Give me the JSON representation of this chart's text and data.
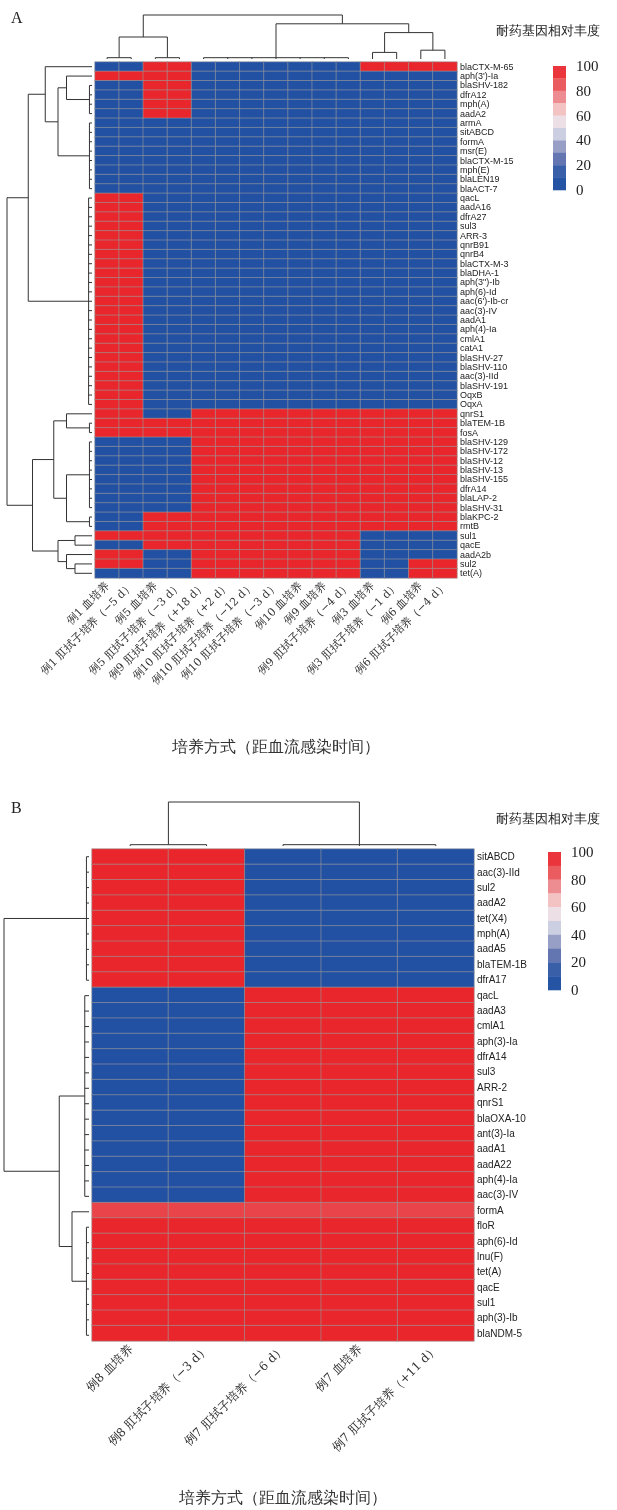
{
  "chart_data": [
    {
      "type": "heatmap",
      "title": "A",
      "xlabel": "培养方式（距血流感染时间）",
      "clabel": "耐药基因相对丰度",
      "categories": [
        "例1 血培养",
        "例1 肛拭子培养（−5 d）",
        "例5 血培养",
        "例5 肛拭子培养（−3 d）",
        "例9 肛拭子培养（+18 d）",
        "例10 肛拭子培养（+2 d）",
        "例10 肛拭子培养（−12 d）",
        "例10 肛拭子培养（−3 d）",
        "例10 血培养",
        "例9 血培养",
        "例9 肛拭子培养（−4 d）",
        "例3 血培养",
        "例3 肛拭子培养（−1 d）",
        "例6 血培养",
        "例6 肛拭子培养（−4 d）"
      ],
      "y_categories": [
        "blaCTX-M-65",
        "aph(3')-Ia",
        "blaSHV-182",
        "dfrA12",
        "mph(A)",
        "aadA2",
        "armA",
        "sitABCD",
        "formA",
        "msr(E)",
        "blaCTX-M-15",
        "mph(E)",
        "blaLEN19",
        "blaACT-7",
        "qacL",
        "aadA16",
        "dfrA27",
        "sul3",
        "ARR-3",
        "qnrB91",
        "qnrB4",
        "blaCTX-M-3",
        "blaDHA-1",
        "aph(3\")-Ib",
        "aph(6)-Id",
        "aac(6')-Ib-cr",
        "aac(3)-IV",
        "aadA1",
        "aph(4)-Ia",
        "cmlA1",
        "catA1",
        "blaSHV-27",
        "blaSHV-110",
        "aac(3)-IId",
        "blaSHV-191",
        "OqxB",
        "OqxA",
        "qnrS1",
        "blaTEM-1B",
        "fosA",
        "blaSHV-129",
        "blaSHV-172",
        "blaSHV-12",
        "blaSHV-13",
        "blaSHV-155",
        "dfrA14",
        "blaLAP-2",
        "blaSHV-31",
        "blaKPC-2",
        "rmtB",
        "sul1",
        "qacE",
        "aadA2b",
        "sul2",
        "tet(A)"
      ],
      "cells": [
        [
          0,
          0,
          100,
          100,
          0,
          0,
          0,
          0,
          0,
          0,
          0,
          100,
          100,
          100,
          100
        ],
        [
          100,
          100,
          100,
          100,
          0,
          0,
          0,
          0,
          0,
          0,
          0,
          0,
          0,
          0,
          0
        ],
        [
          0,
          0,
          100,
          100,
          0,
          0,
          0,
          0,
          0,
          0,
          0,
          0,
          0,
          0,
          0
        ],
        [
          0,
          0,
          100,
          100,
          0,
          0,
          0,
          0,
          0,
          0,
          0,
          0,
          0,
          0,
          0
        ],
        [
          0,
          0,
          100,
          100,
          0,
          0,
          0,
          0,
          0,
          0,
          0,
          0,
          0,
          0,
          0
        ],
        [
          0,
          0,
          100,
          100,
          0,
          0,
          0,
          0,
          0,
          0,
          0,
          0,
          0,
          0,
          0
        ],
        [
          0,
          0,
          0,
          0,
          0,
          0,
          0,
          0,
          0,
          0,
          0,
          0,
          0,
          0,
          0
        ],
        [
          0,
          0,
          0,
          0,
          0,
          0,
          0,
          0,
          0,
          0,
          0,
          0,
          0,
          0,
          0
        ],
        [
          0,
          0,
          0,
          0,
          0,
          0,
          0,
          0,
          0,
          0,
          0,
          0,
          0,
          0,
          0
        ],
        [
          0,
          0,
          0,
          0,
          0,
          0,
          0,
          0,
          0,
          0,
          0,
          0,
          0,
          0,
          0
        ],
        [
          0,
          0,
          0,
          0,
          0,
          0,
          0,
          0,
          0,
          0,
          0,
          0,
          0,
          0,
          0
        ],
        [
          0,
          0,
          0,
          0,
          0,
          0,
          0,
          0,
          0,
          0,
          0,
          0,
          0,
          0,
          0
        ],
        [
          0,
          0,
          0,
          0,
          0,
          0,
          0,
          0,
          0,
          0,
          0,
          0,
          0,
          0,
          0
        ],
        [
          0,
          0,
          0,
          0,
          0,
          0,
          0,
          0,
          0,
          0,
          0,
          0,
          0,
          0,
          0
        ],
        [
          100,
          100,
          0,
          0,
          0,
          0,
          0,
          0,
          0,
          0,
          0,
          0,
          0,
          0,
          0
        ],
        [
          100,
          100,
          0,
          0,
          0,
          0,
          0,
          0,
          0,
          0,
          0,
          0,
          0,
          0,
          0
        ],
        [
          100,
          100,
          0,
          0,
          0,
          0,
          0,
          0,
          0,
          0,
          0,
          0,
          0,
          0,
          0
        ],
        [
          100,
          100,
          0,
          0,
          0,
          0,
          0,
          0,
          0,
          0,
          0,
          0,
          0,
          0,
          0
        ],
        [
          100,
          100,
          0,
          0,
          0,
          0,
          0,
          0,
          0,
          0,
          0,
          0,
          0,
          0,
          0
        ],
        [
          100,
          100,
          0,
          0,
          0,
          0,
          0,
          0,
          0,
          0,
          0,
          0,
          0,
          0,
          0
        ],
        [
          100,
          100,
          0,
          0,
          0,
          0,
          0,
          0,
          0,
          0,
          0,
          0,
          0,
          0,
          0
        ],
        [
          100,
          100,
          0,
          0,
          0,
          0,
          0,
          0,
          0,
          0,
          0,
          0,
          0,
          0,
          0
        ],
        [
          100,
          100,
          0,
          0,
          0,
          0,
          0,
          0,
          0,
          0,
          0,
          0,
          0,
          0,
          0
        ],
        [
          100,
          100,
          0,
          0,
          0,
          0,
          0,
          0,
          0,
          0,
          0,
          0,
          0,
          0,
          0
        ],
        [
          100,
          100,
          0,
          0,
          0,
          0,
          0,
          0,
          0,
          0,
          0,
          0,
          0,
          0,
          0
        ],
        [
          100,
          100,
          0,
          0,
          0,
          0,
          0,
          0,
          0,
          0,
          0,
          0,
          0,
          0,
          0
        ],
        [
          100,
          100,
          0,
          0,
          0,
          0,
          0,
          0,
          0,
          0,
          0,
          0,
          0,
          0,
          0
        ],
        [
          100,
          100,
          0,
          0,
          0,
          0,
          0,
          0,
          0,
          0,
          0,
          0,
          0,
          0,
          0
        ],
        [
          100,
          100,
          0,
          0,
          0,
          0,
          0,
          0,
          0,
          0,
          0,
          0,
          0,
          0,
          0
        ],
        [
          100,
          100,
          0,
          0,
          0,
          0,
          0,
          0,
          0,
          0,
          0,
          0,
          0,
          0,
          0
        ],
        [
          100,
          100,
          0,
          0,
          0,
          0,
          0,
          0,
          0,
          0,
          0,
          0,
          0,
          0,
          0
        ],
        [
          100,
          100,
          0,
          0,
          0,
          0,
          0,
          0,
          0,
          0,
          0,
          0,
          0,
          0,
          0
        ],
        [
          100,
          100,
          0,
          0,
          0,
          0,
          0,
          0,
          0,
          0,
          0,
          0,
          0,
          0,
          0
        ],
        [
          100,
          100,
          0,
          0,
          0,
          0,
          0,
          0,
          0,
          0,
          0,
          0,
          0,
          0,
          0
        ],
        [
          100,
          100,
          0,
          0,
          0,
          0,
          0,
          0,
          0,
          0,
          0,
          0,
          0,
          0,
          0
        ],
        [
          100,
          100,
          0,
          0,
          0,
          0,
          0,
          0,
          0,
          0,
          0,
          0,
          0,
          0,
          0
        ],
        [
          100,
          100,
          0,
          0,
          0,
          0,
          0,
          0,
          0,
          0,
          0,
          0,
          0,
          0,
          0
        ],
        [
          100,
          100,
          0,
          0,
          100,
          100,
          100,
          100,
          100,
          100,
          100,
          100,
          100,
          100,
          100
        ],
        [
          100,
          100,
          100,
          100,
          100,
          100,
          100,
          100,
          100,
          100,
          100,
          100,
          100,
          100,
          100
        ],
        [
          100,
          100,
          100,
          100,
          100,
          100,
          100,
          100,
          100,
          100,
          100,
          100,
          100,
          100,
          100
        ],
        [
          0,
          0,
          0,
          0,
          100,
          100,
          100,
          100,
          100,
          100,
          100,
          100,
          100,
          100,
          100
        ],
        [
          0,
          0,
          0,
          0,
          100,
          100,
          100,
          100,
          100,
          100,
          100,
          100,
          100,
          100,
          100
        ],
        [
          0,
          0,
          0,
          0,
          100,
          100,
          100,
          100,
          100,
          100,
          100,
          100,
          100,
          100,
          100
        ],
        [
          0,
          0,
          0,
          0,
          100,
          100,
          100,
          100,
          100,
          100,
          100,
          100,
          100,
          100,
          100
        ],
        [
          0,
          0,
          0,
          0,
          100,
          100,
          100,
          100,
          100,
          100,
          100,
          100,
          100,
          100,
          100
        ],
        [
          0,
          0,
          0,
          0,
          100,
          100,
          100,
          100,
          100,
          100,
          100,
          100,
          100,
          100,
          100
        ],
        [
          0,
          0,
          0,
          0,
          100,
          100,
          100,
          100,
          100,
          100,
          100,
          100,
          100,
          100,
          100
        ],
        [
          0,
          0,
          0,
          0,
          100,
          100,
          100,
          100,
          100,
          100,
          100,
          100,
          100,
          100,
          100
        ],
        [
          0,
          0,
          100,
          100,
          100,
          100,
          100,
          100,
          100,
          100,
          100,
          100,
          100,
          100,
          100
        ],
        [
          0,
          0,
          100,
          100,
          100,
          100,
          100,
          100,
          100,
          100,
          100,
          100,
          100,
          100,
          100
        ],
        [
          100,
          100,
          100,
          100,
          100,
          100,
          100,
          100,
          100,
          100,
          100,
          0,
          0,
          0,
          0
        ],
        [
          0,
          0,
          100,
          100,
          100,
          100,
          100,
          100,
          100,
          100,
          100,
          0,
          0,
          0,
          0
        ],
        [
          100,
          100,
          0,
          0,
          100,
          100,
          100,
          100,
          100,
          100,
          100,
          0,
          0,
          0,
          0
        ],
        [
          100,
          100,
          0,
          0,
          100,
          100,
          100,
          100,
          100,
          100,
          100,
          0,
          0,
          100,
          100
        ],
        [
          0,
          0,
          0,
          0,
          100,
          100,
          100,
          100,
          100,
          100,
          100,
          0,
          0,
          100,
          100
        ]
      ],
      "clim": [
        0,
        100
      ],
      "cticks": [
        0,
        20,
        40,
        60,
        80,
        100
      ]
    },
    {
      "type": "heatmap",
      "title": "B",
      "xlabel": "培养方式（距血流感染时间）",
      "clabel": "耐药基因相对丰度",
      "categories": [
        "例8 血培养",
        "例8 肛拭子培养（−3 d）",
        "例7 肛拭子培养（−6 d）",
        "例7 血培养",
        "例7 肛拭子培养（+11 d）"
      ],
      "y_categories": [
        "sitABCD",
        "aac(3)-IId",
        "sul2",
        "aadA2",
        "tet(X4)",
        "mph(A)",
        "aadA5",
        "blaTEM-1B",
        "dfrA17",
        "qacL",
        "aadA3",
        "cmlA1",
        "aph(3)-Ia",
        "dfrA14",
        "sul3",
        "ARR-2",
        "qnrS1",
        "blaOXA-10",
        "ant(3)-Ia",
        "aadA1",
        "aadA22",
        "aph(4)-Ia",
        "aac(3)-IV",
        "formA",
        "floR",
        "aph(6)-Id",
        "lnu(F)",
        "tet(A)",
        "qacE",
        "sul1",
        "aph(3)-Ib",
        "blaNDM-5"
      ],
      "cells": [
        [
          100,
          100,
          0,
          0,
          0
        ],
        [
          100,
          100,
          0,
          0,
          0
        ],
        [
          100,
          100,
          0,
          0,
          0
        ],
        [
          100,
          100,
          0,
          0,
          0
        ],
        [
          100,
          100,
          0,
          0,
          0
        ],
        [
          100,
          100,
          0,
          0,
          0
        ],
        [
          100,
          100,
          0,
          0,
          0
        ],
        [
          100,
          100,
          0,
          0,
          0
        ],
        [
          100,
          100,
          0,
          0,
          0
        ],
        [
          0,
          0,
          100,
          100,
          100
        ],
        [
          0,
          0,
          100,
          100,
          100
        ],
        [
          0,
          0,
          100,
          100,
          100
        ],
        [
          0,
          0,
          100,
          100,
          100
        ],
        [
          0,
          0,
          100,
          100,
          100
        ],
        [
          0,
          0,
          100,
          100,
          100
        ],
        [
          0,
          0,
          100,
          100,
          100
        ],
        [
          0,
          0,
          100,
          100,
          100
        ],
        [
          0,
          0,
          100,
          100,
          100
        ],
        [
          0,
          0,
          100,
          100,
          100
        ],
        [
          0,
          0,
          100,
          100,
          100
        ],
        [
          0,
          0,
          100,
          100,
          100
        ],
        [
          0,
          0,
          100,
          100,
          100
        ],
        [
          0,
          0,
          100,
          100,
          100
        ],
        [
          90,
          90,
          90,
          90,
          90
        ],
        [
          100,
          100,
          100,
          100,
          100
        ],
        [
          100,
          100,
          100,
          100,
          100
        ],
        [
          100,
          100,
          100,
          100,
          100
        ],
        [
          100,
          100,
          100,
          100,
          100
        ],
        [
          100,
          100,
          100,
          100,
          100
        ],
        [
          100,
          100,
          100,
          100,
          100
        ],
        [
          100,
          100,
          100,
          100,
          100
        ],
        [
          100,
          100,
          100,
          100,
          100
        ]
      ],
      "clim": [
        0,
        100
      ],
      "cticks": [
        0,
        20,
        40,
        60,
        80,
        100
      ]
    }
  ]
}
